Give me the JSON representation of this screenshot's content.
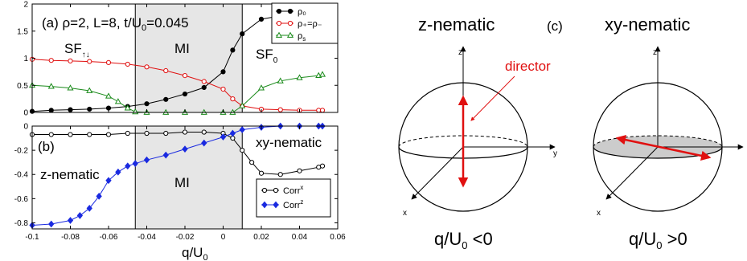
{
  "chart_data": [
    {
      "type": "line",
      "panel_label": "(a) ρ=2, L=8, t/U",
      "panel_label_sub": "0",
      "panel_label_tail": "=0.045",
      "xlim": [
        -0.1,
        0.06
      ],
      "ylim": [
        0,
        2
      ],
      "yticks": [
        "0",
        "0.5",
        "1",
        "1.5",
        "2"
      ],
      "shaded_region": [
        -0.046,
        0.01
      ],
      "region_labels": {
        "left": "SF",
        "left_sub": "↑↓",
        "mid": "MI",
        "right": "SF",
        "right_sub": "0"
      },
      "legend_position": "top-right",
      "series": [
        {
          "name": "ρ₀",
          "color": "#000000",
          "marker": "filled-circle",
          "x": [
            -0.1,
            -0.09,
            -0.08,
            -0.07,
            -0.06,
            -0.05,
            -0.04,
            -0.03,
            -0.02,
            -0.01,
            0.0,
            0.005,
            0.01,
            0.02,
            0.03,
            0.04,
            0.05,
            0.052
          ],
          "y": [
            0.02,
            0.04,
            0.05,
            0.06,
            0.08,
            0.11,
            0.16,
            0.24,
            0.34,
            0.46,
            0.75,
            1.15,
            1.45,
            1.72,
            1.78,
            1.81,
            1.82,
            1.83
          ]
        },
        {
          "name": "ρ₊=ρ₋",
          "color": "#e01010",
          "marker": "open-circle",
          "x": [
            -0.1,
            -0.09,
            -0.08,
            -0.07,
            -0.06,
            -0.05,
            -0.04,
            -0.03,
            -0.02,
            -0.01,
            0.0,
            0.005,
            0.01,
            0.02,
            0.03,
            0.04,
            0.05,
            0.052
          ],
          "y": [
            0.98,
            0.96,
            0.95,
            0.94,
            0.92,
            0.89,
            0.84,
            0.77,
            0.68,
            0.57,
            0.43,
            0.25,
            0.12,
            0.06,
            0.05,
            0.04,
            0.04,
            0.04
          ]
        },
        {
          "name": "ρ",
          "name_sub": "s",
          "color": "#1a8a1a",
          "marker": "open-triangle",
          "x": [
            -0.1,
            -0.09,
            -0.08,
            -0.07,
            -0.06,
            -0.055,
            -0.05,
            -0.046,
            -0.04,
            -0.03,
            -0.02,
            -0.01,
            0.0,
            0.005,
            0.01,
            0.02,
            0.03,
            0.04,
            0.05,
            0.052
          ],
          "y": [
            0.5,
            0.48,
            0.45,
            0.4,
            0.3,
            0.2,
            0.08,
            0.01,
            0.0,
            0.0,
            0.0,
            0.0,
            0.0,
            0.0,
            0.12,
            0.45,
            0.58,
            0.64,
            0.68,
            0.7
          ]
        }
      ]
    },
    {
      "type": "line",
      "panel_label": "(b)",
      "xlabel": "q/U",
      "xlabel_sub": "0",
      "xlim": [
        -0.1,
        0.06
      ],
      "ylim": [
        -0.85,
        0
      ],
      "xticks": [
        "-0.1",
        "-0.08",
        "-0.06",
        "-0.04",
        "-0.02",
        "0",
        "0.02",
        "0.04",
        "0.06"
      ],
      "yticks": [
        "0",
        "-0.2",
        "-0.4",
        "-0.6",
        "-0.8"
      ],
      "shaded_region": [
        -0.046,
        0.01
      ],
      "region_labels": {
        "left": "z-nematic",
        "mid": "MI",
        "right": "xy-nematic"
      },
      "legend_position": "bottom-right",
      "series": [
        {
          "name": "Corr",
          "name_sup": "x",
          "color": "#000000",
          "marker": "open-circle",
          "x": [
            -0.1,
            -0.09,
            -0.08,
            -0.07,
            -0.06,
            -0.05,
            -0.04,
            -0.03,
            -0.02,
            -0.01,
            0.0,
            0.005,
            0.01,
            0.015,
            0.02,
            0.03,
            0.04,
            0.05,
            0.052
          ],
          "y": [
            -0.07,
            -0.07,
            -0.07,
            -0.07,
            -0.07,
            -0.06,
            -0.06,
            -0.06,
            -0.05,
            -0.05,
            -0.06,
            -0.1,
            -0.2,
            -0.3,
            -0.39,
            -0.4,
            -0.37,
            -0.34,
            -0.33
          ]
        },
        {
          "name": "Corr",
          "name_sup": "z",
          "color": "#1a2ae0",
          "marker": "filled-diamond",
          "x": [
            -0.1,
            -0.09,
            -0.08,
            -0.075,
            -0.07,
            -0.065,
            -0.06,
            -0.055,
            -0.05,
            -0.046,
            -0.04,
            -0.03,
            -0.02,
            -0.01,
            0.0,
            0.005,
            0.01,
            0.02,
            0.03,
            0.04,
            0.05,
            0.052
          ],
          "y": [
            -0.82,
            -0.81,
            -0.78,
            -0.74,
            -0.68,
            -0.58,
            -0.45,
            -0.38,
            -0.33,
            -0.31,
            -0.28,
            -0.24,
            -0.19,
            -0.14,
            -0.09,
            -0.06,
            -0.03,
            -0.01,
            0.0,
            0.0,
            0.0,
            0.0
          ]
        }
      ]
    }
  ],
  "diagram": {
    "label": "(c)",
    "left": {
      "title": "z-nematic",
      "caption": "q/U",
      "caption_sub": "0",
      "caption_tail": " <0",
      "axis_z": "z",
      "axis_y": "y",
      "axis_x": "x",
      "annotation": "director",
      "accent": "#e01010"
    },
    "right": {
      "title": "xy-nematic",
      "caption": "q/U",
      "caption_sub": "0",
      "caption_tail": " >0",
      "axis_z": "z",
      "axis_x": "x",
      "disk_fill": "#cccccc"
    }
  }
}
